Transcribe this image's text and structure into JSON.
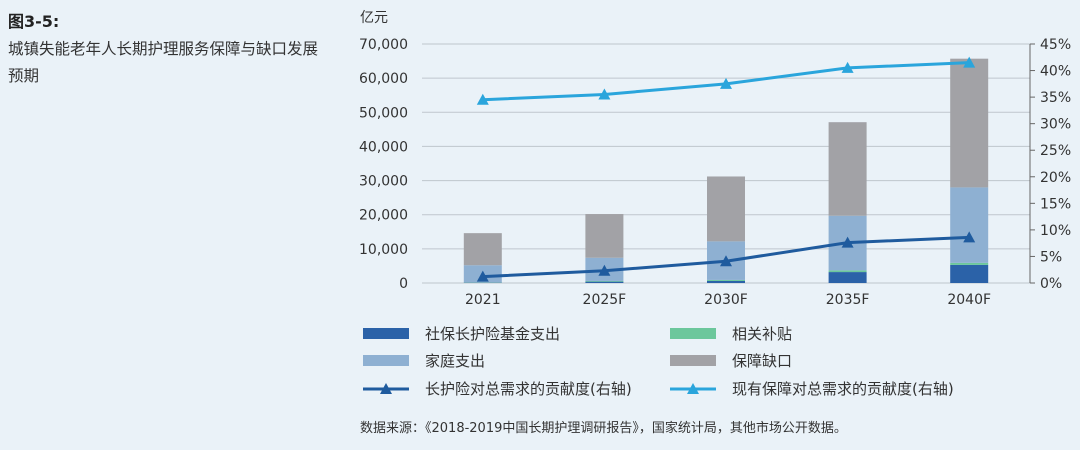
{
  "figure": {
    "number": "图3-5:",
    "title": "城镇失能老年人长期护理服务保障与缺口发展预期"
  },
  "source": "数据来源：《2018-2019中国长期护理调研报告》，国家统计局，其他市场公开数据。",
  "colors": {
    "social_insurance": "#2b62a8",
    "subsidy": "#6cc79c",
    "family": "#8eb0d2",
    "gap": "#a2a2a6",
    "line_ltc": "#1f5b9e",
    "line_existing": "#2aa5dc",
    "grid": "#bfc6cd"
  },
  "chart_data": {
    "type": "bar",
    "stacked": true,
    "categories": [
      "2021",
      "2025F",
      "2030F",
      "2035F",
      "2040F"
    ],
    "ylabel": "亿元",
    "ylim": [
      0,
      70000
    ],
    "yticks": [
      "0",
      "10,000",
      "20,000",
      "30,000",
      "40,000",
      "50,000",
      "60,000",
      "70,000"
    ],
    "y2lim": [
      0,
      45
    ],
    "y2ticks": [
      "0%",
      "5%",
      "10%",
      "15%",
      "20%",
      "25%",
      "30%",
      "35%",
      "40%",
      "45%"
    ],
    "series": [
      {
        "name": "社保长护险基金支出",
        "kind": "bar",
        "values": [
          100,
          400,
          600,
          3200,
          5300
        ]
      },
      {
        "name": "相关补贴",
        "kind": "bar",
        "values": [
          100,
          200,
          300,
          500,
          600
        ]
      },
      {
        "name": "家庭支出",
        "kind": "bar",
        "values": [
          5000,
          6800,
          11300,
          16000,
          22100
        ]
      },
      {
        "name": "保障缺口",
        "kind": "bar",
        "values": [
          9400,
          12800,
          19000,
          27400,
          37700
        ]
      },
      {
        "name": "长护险对总需求的贡献度(右轴)",
        "kind": "line",
        "axis": "right",
        "values": [
          1.2,
          2.3,
          4.1,
          7.6,
          8.6
        ]
      },
      {
        "name": "现有保障对总需求的贡献度(右轴)",
        "kind": "line",
        "axis": "right",
        "values": [
          34.5,
          35.5,
          37.5,
          40.5,
          41.5
        ]
      }
    ],
    "legend_position": "bottom",
    "grid": true
  }
}
